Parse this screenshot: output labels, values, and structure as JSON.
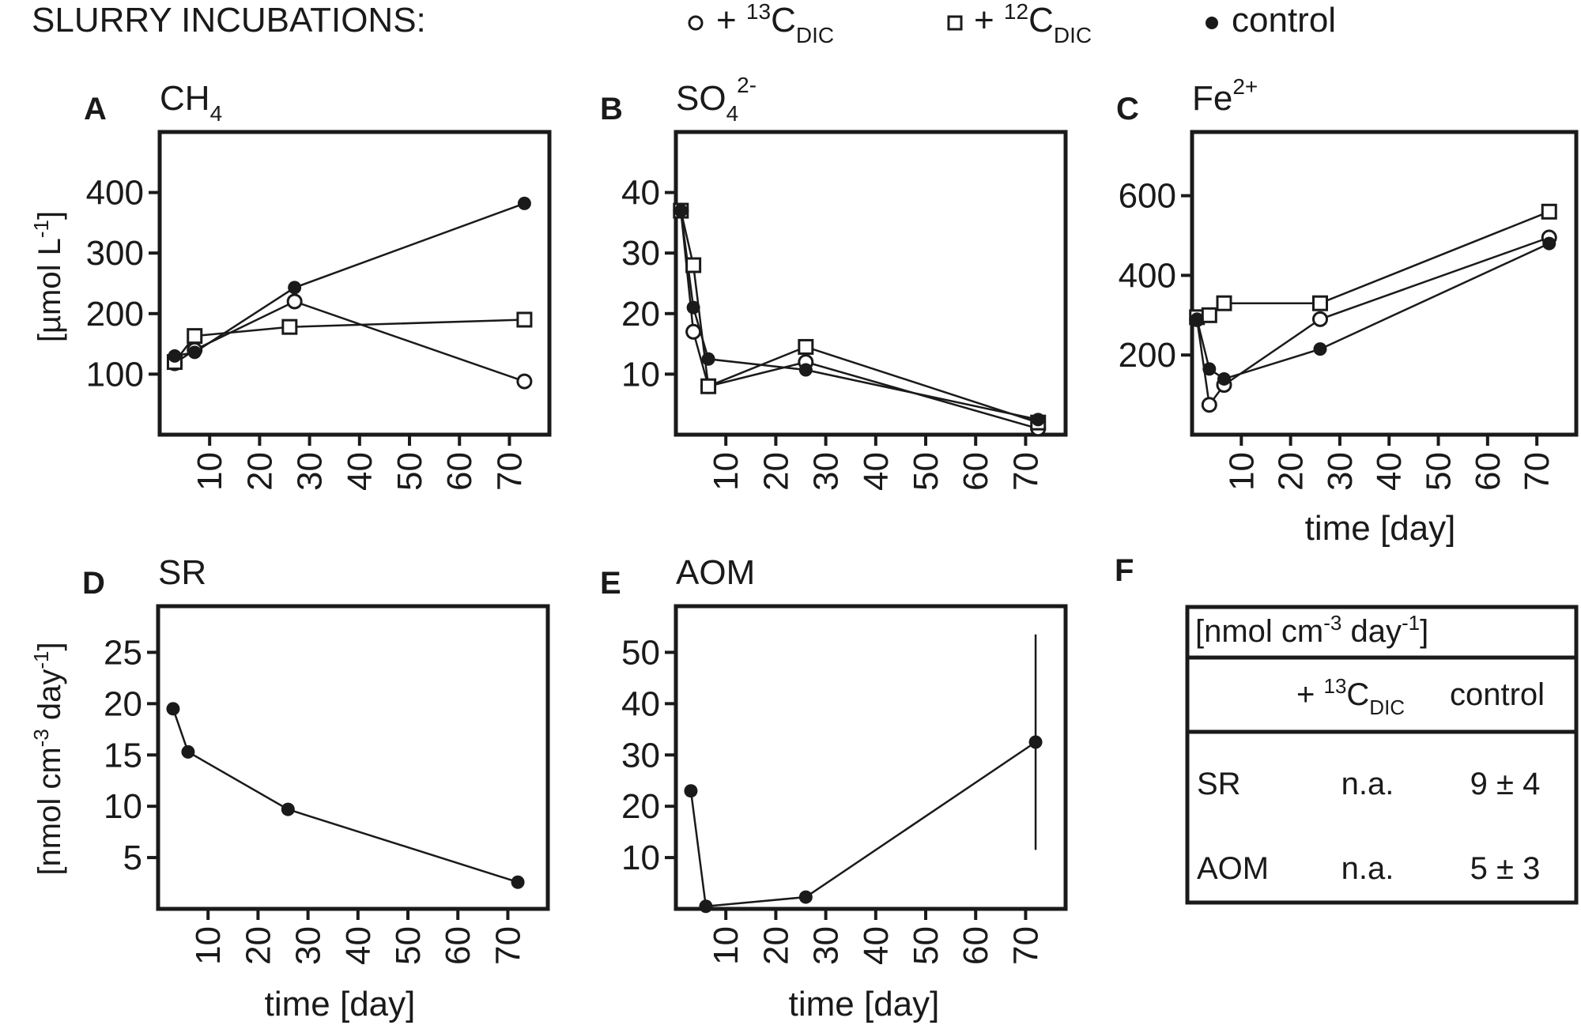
{
  "legend": {
    "title": "SLURRY INCUBATIONS:",
    "items": [
      {
        "marker": "open-circle",
        "prefix": "+ ",
        "sup": "13",
        "base": "C",
        "sub": "DIC"
      },
      {
        "marker": "open-square",
        "prefix": "+ ",
        "sup": "12",
        "base": "C",
        "sub": "DIC"
      },
      {
        "marker": "filled-circle",
        "prefix": "",
        "sup": "",
        "base": "control",
        "sub": ""
      }
    ]
  },
  "x_tick_labels": [
    "10",
    "20",
    "30",
    "40",
    "50",
    "60",
    "70"
  ],
  "xlabel": "time [day]",
  "row1_ylabel": {
    "pre": "[µmol L",
    "sup": "-1",
    "post": "]"
  },
  "row2_ylabel": {
    "pre": "[nmol cm",
    "sup1": "-3",
    "mid": " day",
    "sup2": "-1",
    "post": "]"
  },
  "colors": {
    "ink": "#1a1a1a",
    "open_fill": "#ffffff"
  },
  "chart_data": [
    {
      "id": "A",
      "type": "line",
      "letter": "A",
      "title": {
        "base": "CH",
        "sub": "4",
        "sup": ""
      },
      "xlim": [
        0,
        78
      ],
      "ylim": [
        0,
        500
      ],
      "yticks": [
        100,
        200,
        300,
        400
      ],
      "series": [
        {
          "name": "+ 13C DIC",
          "marker": "open-circle",
          "x": [
            3,
            7,
            27,
            73
          ],
          "y": [
            118,
            140,
            220,
            88
          ]
        },
        {
          "name": "+ 12C DIC",
          "marker": "open-square",
          "x": [
            3,
            7,
            26,
            73
          ],
          "y": [
            120,
            163,
            178,
            190
          ]
        },
        {
          "name": "control",
          "marker": "filled-circle",
          "x": [
            3,
            7,
            27,
            73
          ],
          "y": [
            130,
            136,
            243,
            382
          ]
        }
      ]
    },
    {
      "id": "B",
      "type": "line",
      "letter": "B",
      "title": {
        "base": "SO",
        "sub": "4",
        "sup": "2-"
      },
      "xlim": [
        0,
        78
      ],
      "ylim": [
        0,
        50
      ],
      "yticks": [
        10,
        20,
        30,
        40
      ],
      "series": [
        {
          "name": "+ 13C DIC",
          "marker": "open-circle",
          "x": [
            1,
            3.5,
            6.5,
            26,
            72.5
          ],
          "y": [
            37,
            17,
            8,
            12,
            1
          ]
        },
        {
          "name": "+ 12C DIC",
          "marker": "open-square",
          "x": [
            1,
            3.5,
            6.5,
            26,
            72.5
          ],
          "y": [
            37,
            28,
            8,
            14.5,
            2
          ]
        },
        {
          "name": "control",
          "marker": "filled-circle",
          "x": [
            1,
            3.5,
            6.5,
            26,
            72.5
          ],
          "y": [
            37,
            21,
            12.5,
            10.7,
            2.5
          ]
        }
      ]
    },
    {
      "id": "C",
      "type": "line",
      "letter": "C",
      "title": {
        "base": "Fe",
        "sub": "",
        "sup": "2+"
      },
      "xlim": [
        0,
        78
      ],
      "ylim": [
        0,
        760
      ],
      "yticks": [
        200,
        400,
        600
      ],
      "series": [
        {
          "name": "+ 13C DIC",
          "marker": "open-circle",
          "x": [
            1,
            3.5,
            6.5,
            26,
            72.5
          ],
          "y": [
            290,
            75,
            125,
            290,
            495
          ]
        },
        {
          "name": "+ 12C DIC",
          "marker": "open-square",
          "x": [
            1,
            3.5,
            6.5,
            26,
            72.5
          ],
          "y": [
            295,
            300,
            330,
            330,
            560
          ]
        },
        {
          "name": "control",
          "marker": "filled-circle",
          "x": [
            1,
            3.5,
            6.5,
            26,
            72.5
          ],
          "y": [
            290,
            165,
            140,
            215,
            480
          ]
        }
      ]
    },
    {
      "id": "D",
      "type": "line",
      "letter": "D",
      "title": {
        "base": "SR",
        "sub": "",
        "sup": ""
      },
      "xlim": [
        0,
        78
      ],
      "ylim": [
        0,
        29.5
      ],
      "yticks": [
        5,
        10,
        15,
        20,
        25
      ],
      "series": [
        {
          "name": "control",
          "marker": "filled-circle",
          "x": [
            3,
            6,
            26,
            72
          ],
          "y": [
            19.5,
            15.3,
            9.7,
            2.6
          ]
        }
      ]
    },
    {
      "id": "E",
      "type": "line",
      "letter": "E",
      "title": {
        "base": "AOM",
        "sub": "",
        "sup": ""
      },
      "xlim": [
        0,
        78
      ],
      "ylim": [
        0,
        59
      ],
      "yticks": [
        10,
        20,
        30,
        40,
        50
      ],
      "series": [
        {
          "name": "control",
          "marker": "filled-circle",
          "x": [
            3,
            6,
            26,
            72
          ],
          "y": [
            23,
            0.5,
            2.3,
            32.5
          ],
          "err": [
            0,
            0,
            1,
            21
          ]
        }
      ]
    }
  ],
  "table": {
    "letter": "F",
    "unit": {
      "pre": "[nmol cm",
      "sup1": "-3",
      "mid": " day",
      "sup2": "-1",
      "post": "]"
    },
    "col1": {
      "prefix": "+ ",
      "sup": "13",
      "base": "C",
      "sub": "DIC"
    },
    "col2": "control",
    "rows": [
      {
        "label": "SR",
        "c1": "n.a.",
        "c2": "9 ± 4"
      },
      {
        "label": "AOM",
        "c1": "n.a.",
        "c2": "5 ± 3"
      }
    ]
  }
}
